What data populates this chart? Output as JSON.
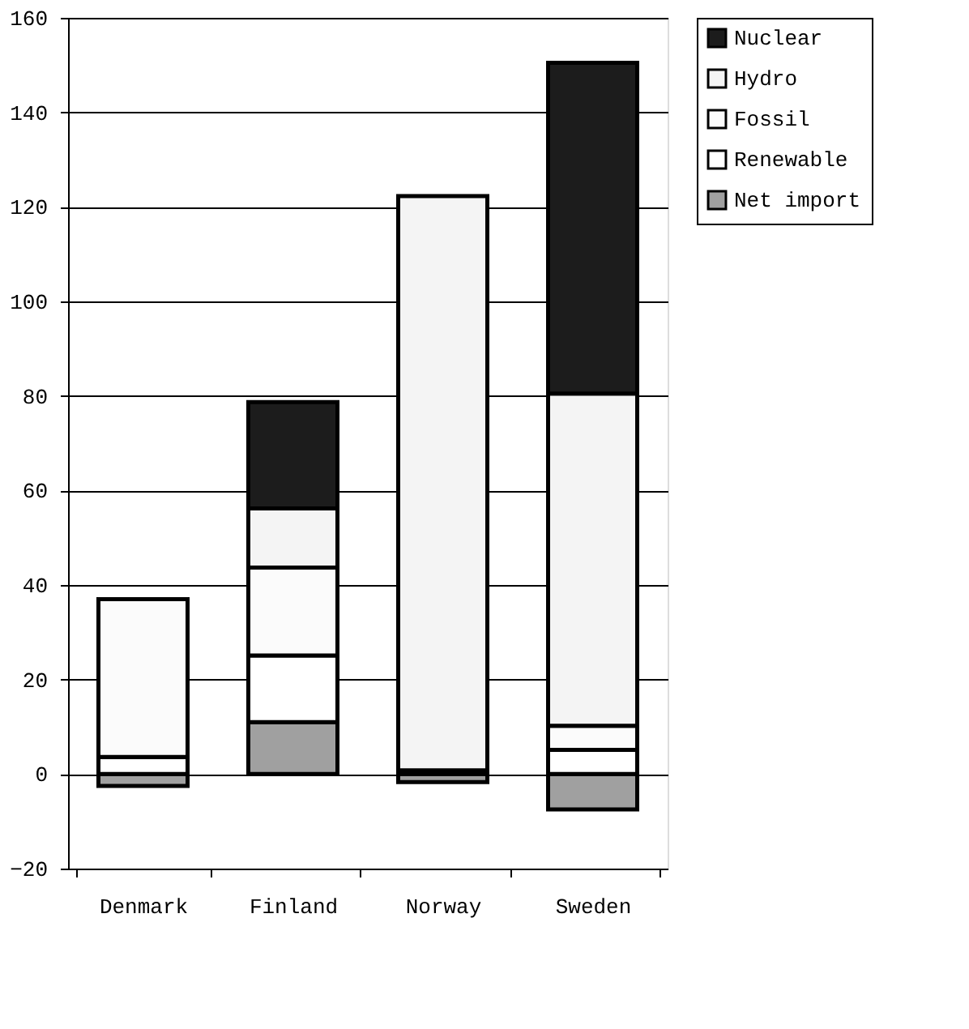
{
  "chart_data": {
    "type": "bar",
    "stacked": true,
    "categories": [
      "Denmark",
      "Finland",
      "Norway",
      "Sweden"
    ],
    "series": [
      {
        "name": "Net import",
        "color": "#a0a0a0",
        "values": [
          -2.5,
          11,
          -1.7,
          -7.5
        ]
      },
      {
        "name": "Renewable",
        "color": "#ffffff",
        "values": [
          3.6,
          14.1,
          0.8,
          5.1
        ]
      },
      {
        "name": "Fossil",
        "color": "#fbfbfb",
        "values": [
          33.4,
          18.6,
          null,
          5.1
        ]
      },
      {
        "name": "Hydro",
        "color": "#f4f4f4",
        "values": [
          null,
          12.5,
          121.5,
          70.3
        ]
      },
      {
        "name": "Nuclear",
        "color": "#1c1c1c",
        "values": [
          null,
          22.5,
          null,
          70
        ]
      }
    ],
    "ylim": [
      -20,
      160
    ],
    "yticks": [
      -20,
      0,
      20,
      40,
      60,
      80,
      100,
      120,
      140,
      160
    ],
    "grid": "y",
    "legend": "right"
  }
}
